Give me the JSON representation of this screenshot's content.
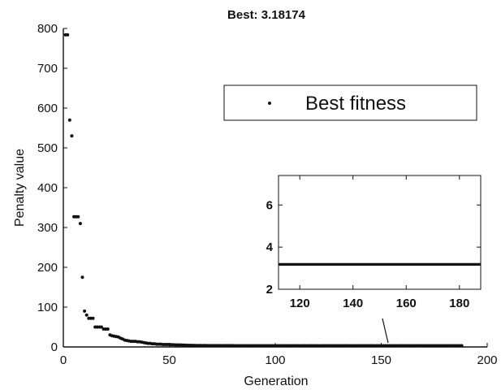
{
  "chart_data": {
    "type": "scatter",
    "title": "Best: 3.18174",
    "xlabel": "Generation",
    "ylabel": "Penalty value",
    "xlim": [
      0,
      200
    ],
    "ylim": [
      0,
      800
    ],
    "xticks": [
      "0",
      "50",
      "100",
      "150",
      "200"
    ],
    "yticks": [
      "0",
      "100",
      "200",
      "300",
      "400",
      "500",
      "600",
      "700",
      "800"
    ],
    "legend": {
      "position": "upper-right",
      "entries": [
        "Best fitness"
      ]
    },
    "grid": false,
    "marker_color": "#111111",
    "series": [
      {
        "name": "Best fitness",
        "x": [
          1,
          2,
          3,
          4,
          5,
          6,
          7,
          8,
          9,
          10,
          11,
          12,
          13,
          14,
          15,
          16,
          17,
          18,
          19,
          20,
          21,
          22,
          23,
          24,
          25,
          26,
          27,
          28,
          29,
          30,
          31,
          32,
          33,
          34,
          35,
          36,
          37,
          38,
          39,
          40,
          41,
          42,
          43,
          44,
          45,
          46,
          47,
          48,
          49,
          50,
          51,
          52,
          53,
          54,
          55,
          56,
          57,
          58,
          59,
          60,
          61,
          62,
          63,
          64,
          65,
          66,
          67,
          68,
          69,
          70,
          71,
          72,
          73,
          74,
          75,
          76,
          77,
          78,
          79,
          80,
          81,
          82,
          83,
          84,
          85,
          86,
          87,
          88,
          89,
          90,
          91,
          92,
          93,
          94,
          95,
          96,
          97,
          98,
          99,
          100,
          101,
          102,
          103,
          104,
          105,
          106,
          107,
          108,
          109,
          110,
          111,
          112,
          113,
          114,
          115,
          116,
          117,
          118,
          119,
          120,
          121,
          122,
          123,
          124,
          125,
          126,
          127,
          128,
          129,
          130,
          131,
          132,
          133,
          134,
          135,
          136,
          137,
          138,
          139,
          140,
          141,
          142,
          143,
          144,
          145,
          146,
          147,
          148,
          149,
          150,
          151,
          152,
          153,
          154,
          155,
          156,
          157,
          158,
          159,
          160,
          161,
          162,
          163,
          164,
          165,
          166,
          167,
          168,
          169,
          170,
          171,
          172,
          173,
          174,
          175,
          176,
          177,
          178,
          179,
          180,
          181,
          182,
          183,
          184,
          185,
          186,
          187,
          188
        ],
        "y": [
          784,
          784,
          570,
          530,
          327,
          327,
          327,
          310,
          175,
          90,
          80,
          72,
          72,
          72,
          50,
          50,
          50,
          50,
          45,
          45,
          45,
          30,
          28,
          27,
          26,
          25,
          22,
          20,
          17,
          16,
          15,
          14,
          14,
          14,
          13,
          13,
          12,
          11,
          10,
          9,
          9,
          8,
          8,
          7,
          7,
          7,
          6,
          6,
          6,
          6,
          5.5,
          5.5,
          5,
          5,
          5,
          4.8,
          4.6,
          4.4,
          4.2,
          4,
          3.9,
          3.8,
          3.7,
          3.6,
          3.5,
          3.5,
          3.45,
          3.4,
          3.35,
          3.3,
          3.3,
          3.28,
          3.26,
          3.25,
          3.24,
          3.23,
          3.22,
          3.21,
          3.2,
          3.2,
          3.19,
          3.19,
          3.19,
          3.19,
          3.19,
          3.19,
          3.19,
          3.19,
          3.19,
          3.19,
          3.18174,
          3.18174,
          3.18174,
          3.18174,
          3.18174,
          3.18174,
          3.18174,
          3.18174,
          3.18174,
          3.18174,
          3.18174,
          3.18174,
          3.18174,
          3.18174,
          3.18174,
          3.18174,
          3.18174,
          3.18174,
          3.18174,
          3.18174,
          3.18174,
          3.18174,
          3.18174,
          3.18174,
          3.18174,
          3.18174,
          3.18174,
          3.18174,
          3.18174,
          3.18174,
          3.18174,
          3.18174,
          3.18174,
          3.18174,
          3.18174,
          3.18174,
          3.18174,
          3.18174,
          3.18174,
          3.18174,
          3.18174,
          3.18174,
          3.18174,
          3.18174,
          3.18174,
          3.18174,
          3.18174,
          3.18174,
          3.18174,
          3.18174,
          3.18174,
          3.18174,
          3.18174,
          3.18174,
          3.18174,
          3.18174,
          3.18174,
          3.18174,
          3.18174,
          3.18174,
          3.18174,
          3.18174,
          3.18174,
          3.18174,
          3.18174,
          3.18174,
          3.18174,
          3.18174,
          3.18174,
          3.18174,
          3.18174,
          3.18174,
          3.18174,
          3.18174,
          3.18174,
          3.18174,
          3.18174,
          3.18174,
          3.18174,
          3.18174,
          3.18174,
          3.18174,
          3.18174,
          3.18174,
          3.18174,
          3.18174,
          3.18174,
          3.18174,
          3.18174,
          3.18174,
          3.18174,
          3.18174,
          3.18174,
          3.18174,
          3.18174,
          3.18174,
          3.18174,
          3.18174
        ]
      }
    ],
    "inset": {
      "xlim": [
        112,
        188
      ],
      "ylim": [
        2,
        7.4
      ],
      "xticks": [
        "120",
        "140",
        "160",
        "180"
      ],
      "yticks": [
        "2",
        "4",
        "6"
      ],
      "xrange": [
        112,
        188
      ],
      "value": 3.18174
    }
  }
}
